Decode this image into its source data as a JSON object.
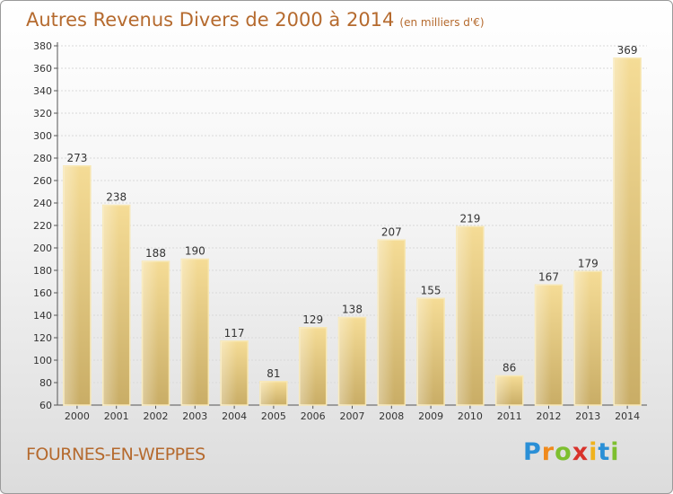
{
  "header": {
    "title": "Autres Revenus Divers de 2000 à 2014",
    "subtitle": "(en milliers d'€)"
  },
  "footer": {
    "place": "FOURNES-EN-WEPPES",
    "logo": "Proxiti"
  },
  "colors": {
    "title": "#b56a2e",
    "bar_top": "#f5dc96",
    "bar_bottom": "#c9ad66",
    "grid": "#d9d9d9"
  },
  "chart_data": {
    "type": "bar",
    "title": "Autres Revenus Divers de 2000 à 2014",
    "subtitle": "(en milliers d'€)",
    "categories": [
      "2000",
      "2001",
      "2002",
      "2003",
      "2004",
      "2005",
      "2006",
      "2007",
      "2008",
      "2009",
      "2010",
      "2011",
      "2012",
      "2013",
      "2014"
    ],
    "values": [
      273,
      238,
      188,
      190,
      117,
      81,
      129,
      138,
      207,
      155,
      219,
      86,
      167,
      179,
      369
    ],
    "ylim": [
      60,
      380
    ],
    "yticks": [
      60,
      80,
      100,
      120,
      140,
      160,
      180,
      200,
      220,
      240,
      260,
      280,
      300,
      320,
      340,
      360,
      380
    ],
    "grid": true,
    "legend": "none"
  }
}
